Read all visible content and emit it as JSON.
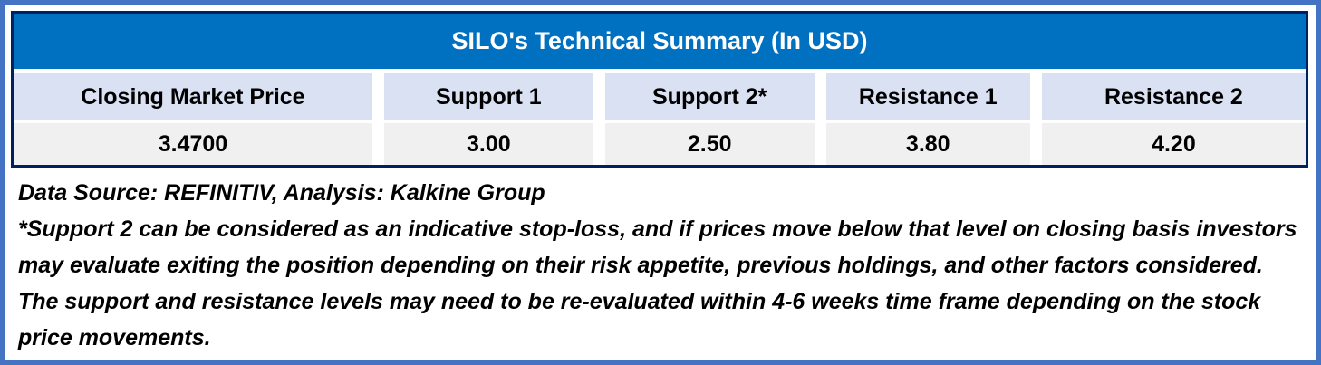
{
  "table": {
    "title": "SILO's Technical Summary (In USD)",
    "columns": [
      {
        "header": "Closing Market Price",
        "value": "3.4700"
      },
      {
        "header": "Support 1",
        "value": "3.00"
      },
      {
        "header": "Support 2*",
        "value": "2.50"
      },
      {
        "header": "Resistance 1",
        "value": "3.80"
      },
      {
        "header": "Resistance 2",
        "value": "4.20"
      }
    ]
  },
  "notes": {
    "source_line": "Data Source: REFINITIV, Analysis: Kalkine Group",
    "disclaimer": "*Support 2 can be considered as an indicative stop-loss, and if prices move below that level on closing basis investors may evaluate exiting the position depending on their risk appetite, previous holdings, and other factors considered. The support and resistance levels may need to be re-evaluated within 4-6 weeks time frame depending on the stock price movements."
  },
  "colors": {
    "outer_border": "#4573C4",
    "table_border": "#002060",
    "title_bg": "#0070C0",
    "title_text": "#FFFFFF",
    "header_bg": "#D9E1F2",
    "value_bg": "#F0F0F0",
    "body_text": "#000000"
  }
}
